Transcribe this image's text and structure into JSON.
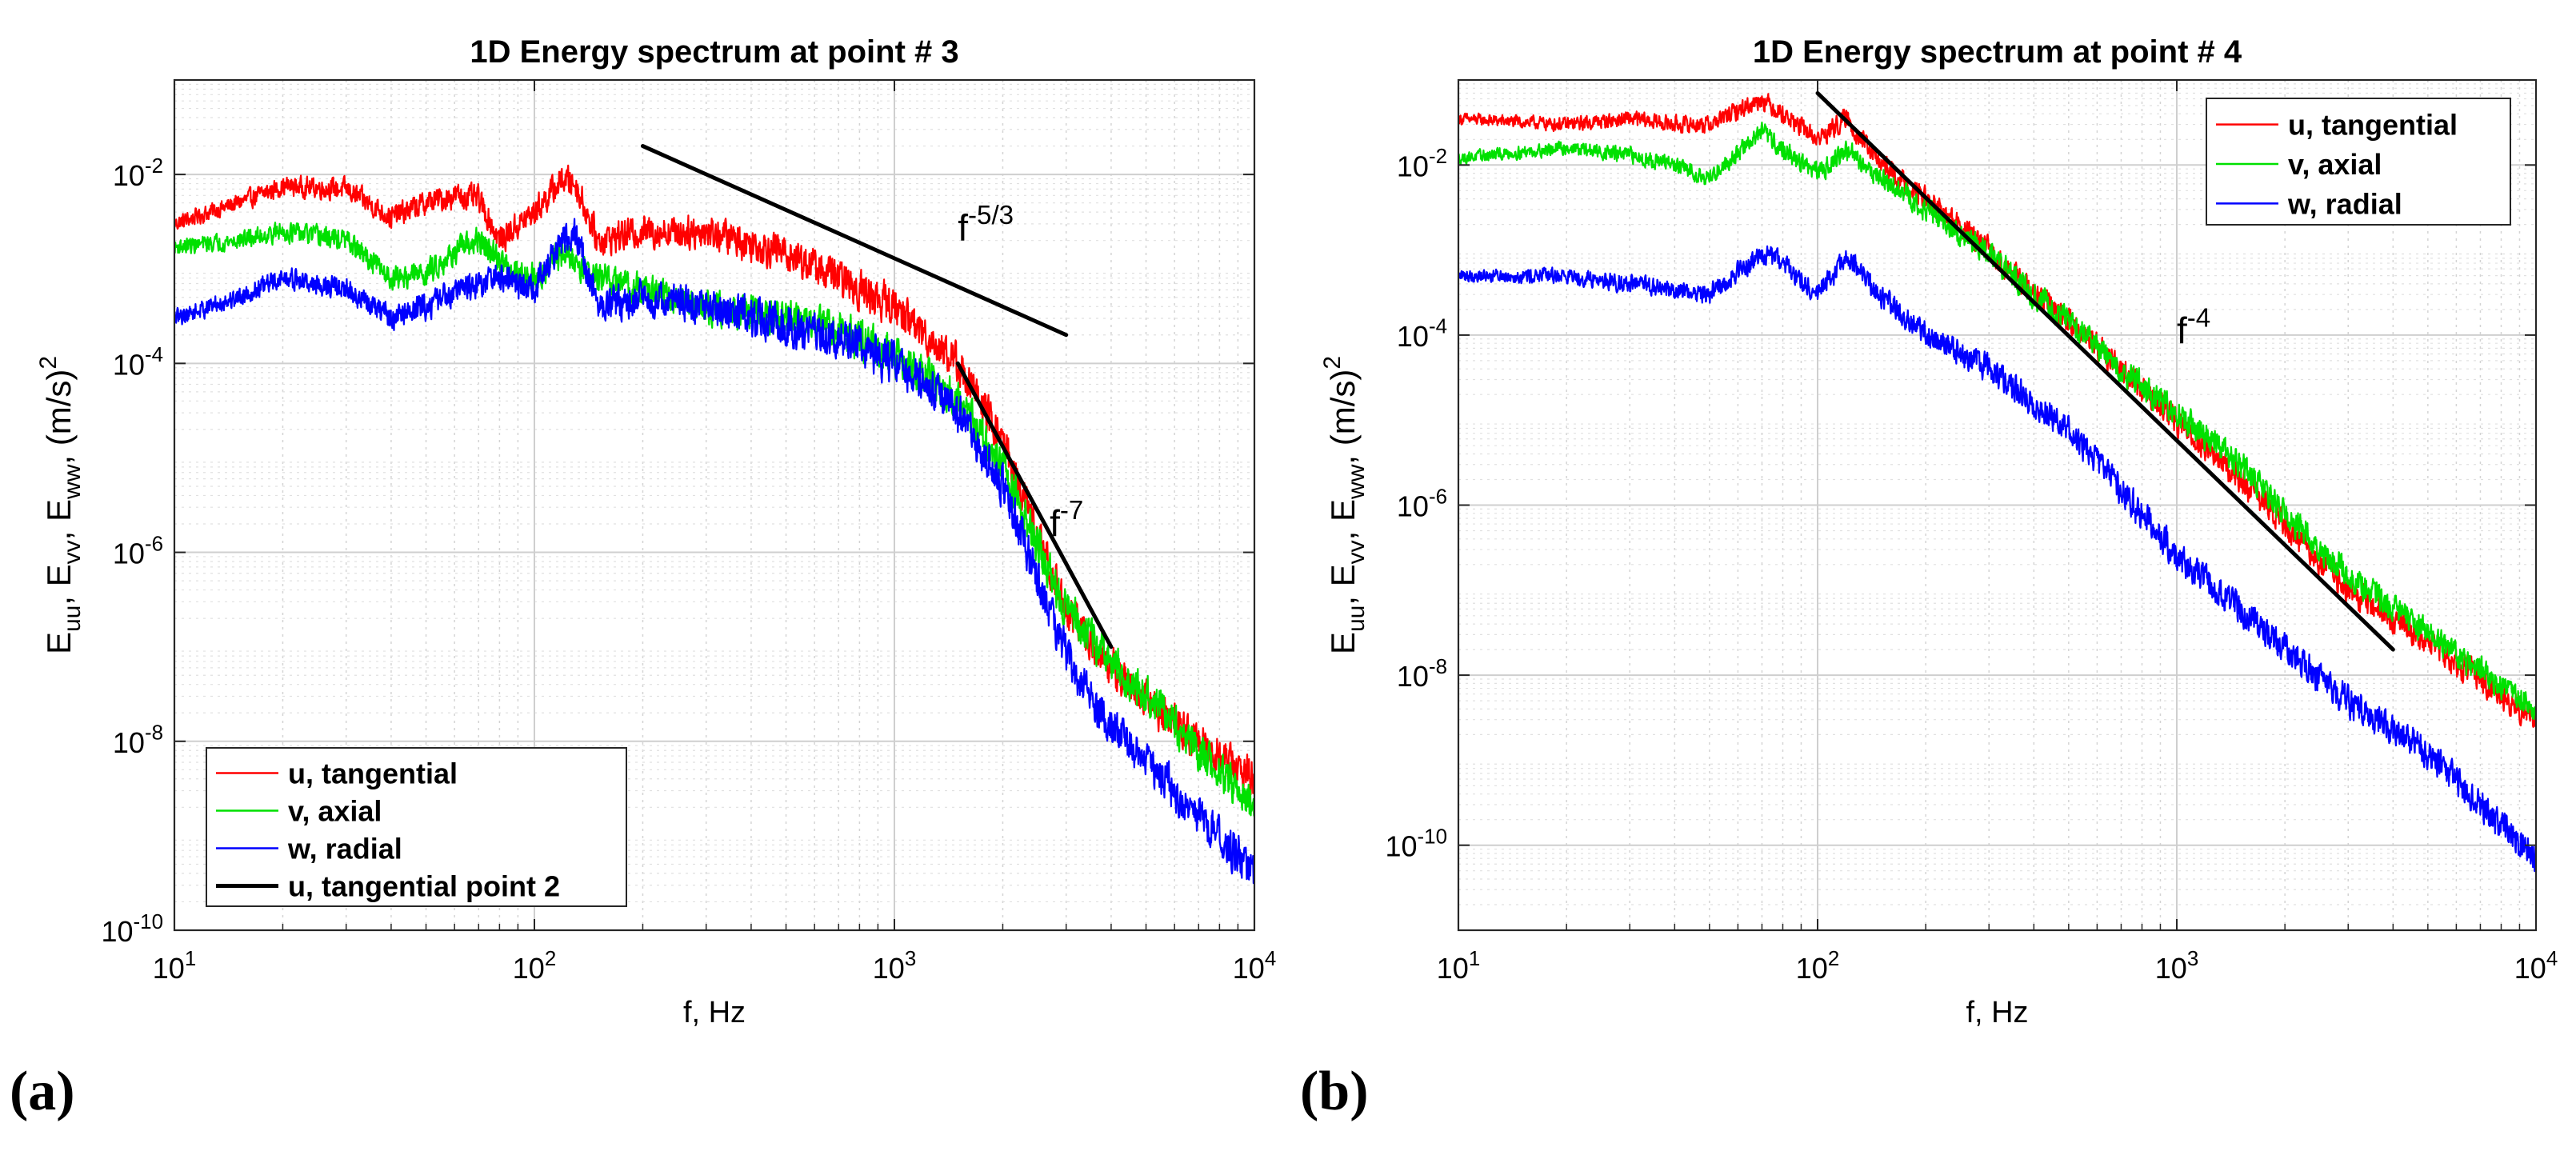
{
  "figure": {
    "panel_labels": [
      "(a)",
      "(b)"
    ]
  },
  "chart_data": [
    {
      "type": "line",
      "title": "1D Energy spectrum  at point # 3",
      "xlabel": "f, Hz",
      "ylabel": "E_uu, E_vv, E_ww, (m/s)^2",
      "xscale": "log",
      "yscale": "log",
      "xlim": [
        10,
        10000
      ],
      "ylim": [
        1e-10,
        0.1
      ],
      "x_ticks": [
        10,
        100,
        1000,
        10000
      ],
      "x_tick_labels": [
        {
          "base": "10",
          "exp": "1"
        },
        {
          "base": "10",
          "exp": "2"
        },
        {
          "base": "10",
          "exp": "3"
        },
        {
          "base": "10",
          "exp": "4"
        }
      ],
      "y_ticks": [
        1e-10,
        1e-08,
        1e-06,
        0.0001,
        0.01
      ],
      "y_tick_labels": [
        {
          "base": "10",
          "exp": "-10"
        },
        {
          "base": "10",
          "exp": "-8"
        },
        {
          "base": "10",
          "exp": "-6"
        },
        {
          "base": "10",
          "exp": "-4"
        },
        {
          "base": "10",
          "exp": "-2"
        }
      ],
      "grid": true,
      "legend_position": "bottom-left",
      "series": [
        {
          "name": "u, tangential",
          "color": "#ff0000",
          "noise": 0.28,
          "points": [
            [
              10,
              0.003
            ],
            [
              15,
              0.005
            ],
            [
              20,
              0.0075
            ],
            [
              30,
              0.007
            ],
            [
              40,
              0.0035
            ],
            [
              50,
              0.005
            ],
            [
              60,
              0.006
            ],
            [
              70,
              0.0055
            ],
            [
              80,
              0.002
            ],
            [
              100,
              0.004
            ],
            [
              120,
              0.009
            ],
            [
              130,
              0.008
            ],
            [
              150,
              0.002
            ],
            [
              200,
              0.0025
            ],
            [
              300,
              0.0025
            ],
            [
              500,
              0.0015
            ],
            [
              700,
              0.0008
            ],
            [
              1000,
              0.0004
            ],
            [
              1500,
              0.0001
            ],
            [
              2000,
              1.5e-05
            ],
            [
              2500,
              1.5e-06
            ],
            [
              3000,
              2.5e-07
            ],
            [
              4000,
              6e-08
            ],
            [
              6000,
              1.5e-08
            ],
            [
              10000,
              4e-09
            ]
          ]
        },
        {
          "name": "v, axial",
          "color": "#00e000",
          "noise": 0.28,
          "points": [
            [
              10,
              0.0017
            ],
            [
              15,
              0.002
            ],
            [
              20,
              0.0025
            ],
            [
              30,
              0.002
            ],
            [
              40,
              0.0008
            ],
            [
              50,
              0.0009
            ],
            [
              60,
              0.0015
            ],
            [
              70,
              0.002
            ],
            [
              80,
              0.0012
            ],
            [
              100,
              0.0008
            ],
            [
              120,
              0.0015
            ],
            [
              150,
              0.0008
            ],
            [
              200,
              0.0006
            ],
            [
              300,
              0.0004
            ],
            [
              500,
              0.0003
            ],
            [
              700,
              0.00022
            ],
            [
              1000,
              0.00012
            ],
            [
              1500,
              4e-05
            ],
            [
              2000,
              8e-06
            ],
            [
              2500,
              1.2e-06
            ],
            [
              3000,
              2.5e-07
            ],
            [
              4000,
              7e-08
            ],
            [
              6000,
              1.5e-08
            ],
            [
              10000,
              2e-09
            ]
          ]
        },
        {
          "name": "w, radial",
          "color": "#0000ff",
          "noise": 0.3,
          "points": [
            [
              10,
              0.0003
            ],
            [
              15,
              0.0005
            ],
            [
              20,
              0.0008
            ],
            [
              30,
              0.0006
            ],
            [
              40,
              0.0003
            ],
            [
              50,
              0.0004
            ],
            [
              60,
              0.0006
            ],
            [
              80,
              0.0008
            ],
            [
              100,
              0.0006
            ],
            [
              120,
              0.002
            ],
            [
              130,
              0.0025
            ],
            [
              150,
              0.0004
            ],
            [
              200,
              0.0005
            ],
            [
              300,
              0.0004
            ],
            [
              500,
              0.00025
            ],
            [
              700,
              0.00018
            ],
            [
              1000,
              0.0001
            ],
            [
              1500,
              3e-05
            ],
            [
              2000,
              5e-06
            ],
            [
              2500,
              5e-07
            ],
            [
              3000,
              8e-08
            ],
            [
              4000,
              1.5e-08
            ],
            [
              6000,
              3e-09
            ],
            [
              10000,
              4e-10
            ]
          ]
        }
      ],
      "reference_lines": [
        {
          "name": "u, tangential point 2",
          "color": "#000000",
          "segments": [
            {
              "from": [
                200,
                0.02
              ],
              "to": [
                3000,
                0.0002
              ]
            },
            {
              "from": [
                1500,
                0.0001
              ],
              "to": [
                4000,
                1e-07
              ]
            }
          ]
        }
      ],
      "annotations": [
        {
          "base": "f",
          "exp": "-5/3",
          "at": [
            1500,
            0.002
          ]
        },
        {
          "base": "f",
          "exp": "-7",
          "at": [
            2700,
            1.5e-06
          ]
        }
      ]
    },
    {
      "type": "line",
      "title": "1D Energy spectrum  at point # 4",
      "xlabel": "f, Hz",
      "ylabel": "E_uu, E_vv, E_ww, (m/s)^2",
      "xscale": "log",
      "yscale": "log",
      "xlim": [
        10,
        10000
      ],
      "ylim": [
        1e-11,
        0.1
      ],
      "x_ticks": [
        10,
        100,
        1000,
        10000
      ],
      "x_tick_labels": [
        {
          "base": "10",
          "exp": "1"
        },
        {
          "base": "10",
          "exp": "2"
        },
        {
          "base": "10",
          "exp": "3"
        },
        {
          "base": "10",
          "exp": "4"
        }
      ],
      "y_ticks": [
        1e-10,
        1e-08,
        1e-06,
        0.0001,
        0.01
      ],
      "y_tick_labels": [
        {
          "base": "10",
          "exp": "-10"
        },
        {
          "base": "10",
          "exp": "-8"
        },
        {
          "base": "10",
          "exp": "-6"
        },
        {
          "base": "10",
          "exp": "-4"
        },
        {
          "base": "10",
          "exp": "-2"
        }
      ],
      "grid": true,
      "legend_position": "top-right",
      "series": [
        {
          "name": "u, tangential",
          "color": "#ff0000",
          "noise": 0.22,
          "points": [
            [
              10,
              0.035
            ],
            [
              20,
              0.03
            ],
            [
              30,
              0.035
            ],
            [
              40,
              0.03
            ],
            [
              50,
              0.03
            ],
            [
              70,
              0.06
            ],
            [
              80,
              0.04
            ],
            [
              100,
              0.02
            ],
            [
              120,
              0.035
            ],
            [
              150,
              0.01
            ],
            [
              200,
              0.004
            ],
            [
              300,
              0.001
            ],
            [
              400,
              0.0003
            ],
            [
              500,
              0.00015
            ],
            [
              700,
              4e-05
            ],
            [
              1000,
              1e-05
            ],
            [
              1500,
              2e-06
            ],
            [
              2000,
              6e-07
            ],
            [
              3000,
              1e-07
            ],
            [
              5000,
              2.5e-08
            ],
            [
              10000,
              3e-09
            ]
          ]
        },
        {
          "name": "v, axial",
          "color": "#00e000",
          "noise": 0.22,
          "points": [
            [
              10,
              0.012
            ],
            [
              20,
              0.016
            ],
            [
              30,
              0.013
            ],
            [
              40,
              0.01
            ],
            [
              50,
              0.007
            ],
            [
              70,
              0.025
            ],
            [
              80,
              0.015
            ],
            [
              100,
              0.008
            ],
            [
              120,
              0.015
            ],
            [
              150,
              0.007
            ],
            [
              200,
              0.003
            ],
            [
              300,
              0.0009
            ],
            [
              400,
              0.0003
            ],
            [
              500,
              0.00015
            ],
            [
              700,
              4e-05
            ],
            [
              1000,
              1.2e-05
            ],
            [
              1500,
              3e-06
            ],
            [
              2000,
              8e-07
            ],
            [
              3000,
              1.5e-07
            ],
            [
              5000,
              3e-08
            ],
            [
              10000,
              4e-09
            ]
          ]
        },
        {
          "name": "w, radial",
          "color": "#0000ff",
          "noise": 0.25,
          "points": [
            [
              10,
              0.0005
            ],
            [
              20,
              0.0005
            ],
            [
              30,
              0.0004
            ],
            [
              50,
              0.0003
            ],
            [
              70,
              0.0009
            ],
            [
              80,
              0.0007
            ],
            [
              100,
              0.0003
            ],
            [
              120,
              0.0008
            ],
            [
              150,
              0.0003
            ],
            [
              200,
              0.0001
            ],
            [
              300,
              4e-05
            ],
            [
              500,
              8e-06
            ],
            [
              700,
              1.5e-06
            ],
            [
              1000,
              2.5e-07
            ],
            [
              1500,
              6e-08
            ],
            [
              2000,
              2e-08
            ],
            [
              3000,
              5e-09
            ],
            [
              5000,
              1.2e-09
            ],
            [
              10000,
              7e-11
            ]
          ]
        }
      ],
      "reference_lines": [
        {
          "name": "",
          "color": "#000000",
          "segments": [
            {
              "from": [
                100,
                0.07
              ],
              "to": [
                4000,
                2e-08
              ]
            }
          ]
        }
      ],
      "annotations": [
        {
          "base": "f",
          "exp": "-4",
          "at": [
            1000,
            8e-05
          ]
        }
      ]
    }
  ]
}
